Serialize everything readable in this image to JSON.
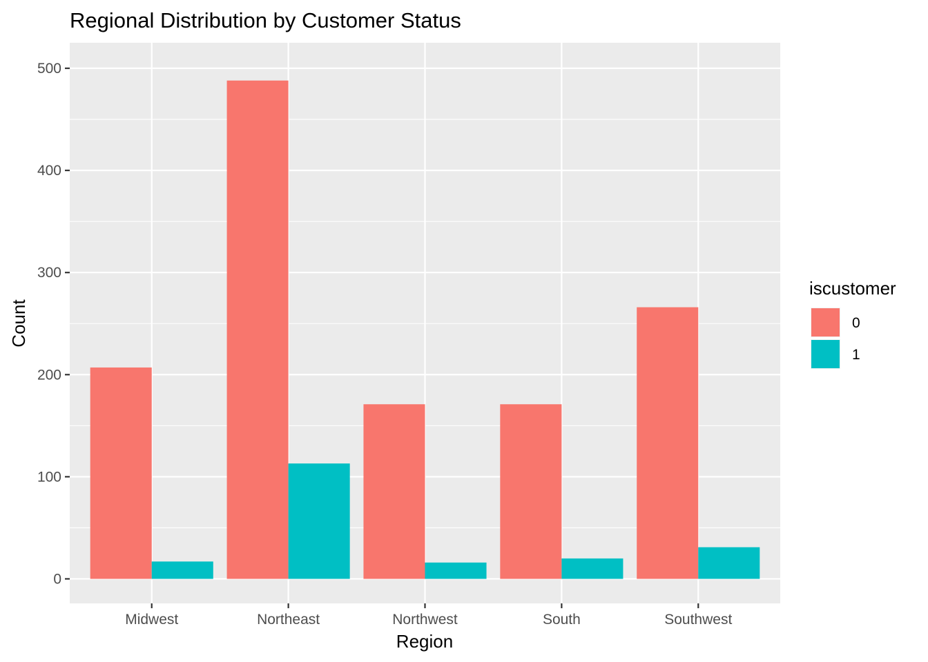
{
  "chart_data": {
    "type": "bar",
    "title": "Regional Distribution by Customer Status",
    "xlabel": "Region",
    "ylabel": "Count",
    "categories": [
      "Midwest",
      "Northeast",
      "Northwest",
      "South",
      "Southwest"
    ],
    "series": [
      {
        "name": "0",
        "color": "#F8766D",
        "values": [
          207,
          488,
          171,
          171,
          266
        ]
      },
      {
        "name": "1",
        "color": "#00BFC4",
        "values": [
          17,
          113,
          16,
          20,
          31
        ]
      }
    ],
    "ylim": [
      -24,
      525
    ],
    "y_ticks": [
      0,
      100,
      200,
      300,
      400,
      500
    ],
    "y_tick_labels": [
      "0",
      "100",
      "200",
      "300",
      "400",
      "500"
    ],
    "grid": true,
    "legend": {
      "title": "iscustomer",
      "position": "right"
    },
    "panel_background": "#EBEBEB",
    "grid_color": "#FFFFFF"
  }
}
